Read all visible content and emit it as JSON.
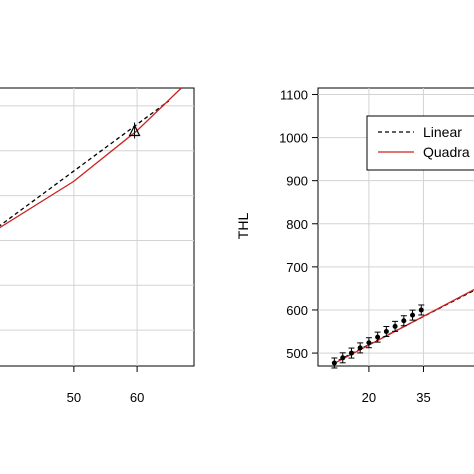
{
  "chart_data": [
    {
      "type": "line",
      "title": "",
      "xlabel": "",
      "ylabel": "",
      "xlim": [
        38,
        69
      ],
      "ylim": [
        520,
        1140
      ],
      "xticks": [
        50,
        60
      ],
      "yticks": [],
      "grid": true,
      "series": [
        {
          "name": "Linear",
          "style": "dashed",
          "color": "#000000",
          "x": [
            38,
            65
          ],
          "y": [
            830,
            1111
          ]
        },
        {
          "name": "Quadratic",
          "style": "solid",
          "color": "#cc2222",
          "x": [
            38,
            50,
            60,
            67
          ],
          "y": [
            826,
            932,
            1045,
            1140
          ]
        }
      ],
      "points": [
        {
          "x": 59.6,
          "y": 1043,
          "marker": "triangle"
        }
      ]
    },
    {
      "type": "line",
      "title": "",
      "xlabel": "",
      "ylabel": "THL",
      "xlim": [
        6,
        50
      ],
      "ylim": [
        470,
        1115
      ],
      "xticks": [
        20,
        35
      ],
      "yticks": [
        500,
        600,
        700,
        800,
        900,
        1000,
        1100
      ],
      "ytick_labels": [
        "500",
        "600",
        "700",
        "800",
        "900",
        "1000",
        "1100"
      ],
      "grid": true,
      "legend": {
        "position": "top-right",
        "entries": [
          "Linear",
          "Quadra"
        ]
      },
      "series": [
        {
          "name": "Linear",
          "style": "dashed",
          "color": "#000000",
          "x": [
            10,
            50
          ],
          "y": [
            476,
            650
          ]
        },
        {
          "name": "Quadratic",
          "style": "solid",
          "color": "#cc2222",
          "x": [
            10,
            50
          ],
          "y": [
            474,
            652
          ]
        }
      ],
      "points": [
        {
          "x": 10.5,
          "y": 477
        },
        {
          "x": 12.8,
          "y": 489
        },
        {
          "x": 15.2,
          "y": 500
        },
        {
          "x": 17.6,
          "y": 512
        },
        {
          "x": 20.0,
          "y": 524
        },
        {
          "x": 22.4,
          "y": 537
        },
        {
          "x": 24.8,
          "y": 550
        },
        {
          "x": 27.2,
          "y": 562
        },
        {
          "x": 29.6,
          "y": 575
        },
        {
          "x": 32.0,
          "y": 588
        },
        {
          "x": 34.4,
          "y": 600
        }
      ]
    }
  ]
}
